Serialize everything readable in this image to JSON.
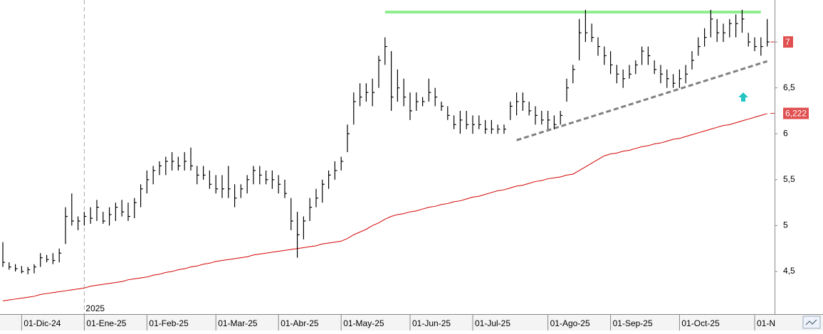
{
  "chart_data": {
    "type": "ohlc",
    "categories": [
      null,
      null,
      null,
      "01-Dic-24",
      null,
      null,
      null,
      null,
      null,
      null,
      null,
      null,
      null,
      "01-Ene-25",
      null,
      null,
      null,
      null,
      null,
      null,
      null,
      null,
      null,
      "01-Feb-25",
      null,
      null,
      null,
      null,
      null,
      null,
      null,
      null,
      null,
      null,
      "01-Mar-25",
      null,
      null,
      null,
      null,
      null,
      null,
      null,
      null,
      null,
      "01-Abr-25",
      null,
      null,
      null,
      null,
      null,
      null,
      null,
      null,
      null,
      "01-May-25",
      null,
      null,
      null,
      null,
      null,
      null,
      null,
      null,
      null,
      null,
      "01-Jun-25",
      null,
      null,
      null,
      null,
      null,
      null,
      null,
      null,
      null,
      "01-Jul-25",
      null,
      null,
      null,
      null,
      null,
      null,
      null,
      null,
      null,
      null,
      null,
      "01-Ago-25",
      null,
      null,
      null,
      null,
      null,
      null,
      null,
      null,
      null,
      "01-Sep-25",
      null,
      null,
      null,
      null,
      null,
      null,
      null,
      null,
      null,
      null,
      "01-Oct-25",
      null,
      null,
      null,
      null,
      null,
      null,
      null,
      null,
      null,
      null,
      null,
      "01-N",
      null,
      null
    ],
    "year_marker": {
      "label": "2025",
      "at": 13
    },
    "high": [
      4.82,
      4.6,
      4.58,
      4.56,
      4.55,
      4.58,
      4.7,
      4.68,
      4.7,
      4.75,
      5.2,
      5.35,
      5.1,
      5.15,
      5.2,
      5.28,
      5.15,
      5.2,
      5.25,
      5.28,
      5.25,
      5.3,
      5.45,
      5.6,
      5.65,
      5.7,
      5.75,
      5.8,
      5.75,
      5.8,
      5.85,
      5.65,
      5.65,
      5.6,
      5.55,
      5.55,
      5.65,
      5.45,
      5.45,
      5.55,
      5.65,
      5.65,
      5.6,
      5.6,
      5.55,
      5.5,
      5.3,
      5.15,
      5.1,
      5.3,
      5.4,
      5.5,
      5.6,
      5.7,
      5.75,
      6.1,
      6.45,
      6.55,
      6.55,
      6.6,
      6.85,
      7.05,
      6.9,
      6.7,
      6.6,
      6.45,
      6.45,
      6.4,
      6.6,
      6.5,
      6.35,
      6.3,
      6.2,
      6.25,
      6.25,
      6.2,
      6.2,
      6.15,
      6.15,
      6.1,
      6.1,
      6.35,
      6.45,
      6.45,
      6.35,
      6.3,
      6.25,
      6.25,
      6.2,
      6.25,
      6.6,
      6.75,
      7.25,
      7.35,
      7.2,
      7.05,
      6.95,
      6.9,
      6.75,
      6.7,
      6.75,
      6.8,
      6.95,
      6.95,
      6.8,
      6.75,
      6.7,
      6.65,
      6.7,
      6.75,
      6.9,
      7.05,
      7.15,
      7.35,
      7.25,
      7.2,
      7.25,
      7.3,
      7.35,
      7.1,
      7.05,
      7.05,
      7.25
    ],
    "low": [
      4.55,
      4.52,
      4.5,
      4.48,
      4.47,
      4.48,
      4.55,
      4.6,
      4.58,
      4.6,
      4.8,
      5.0,
      4.95,
      5.0,
      5.02,
      5.05,
      5.02,
      5.0,
      5.05,
      5.1,
      5.05,
      5.08,
      5.2,
      5.35,
      5.45,
      5.55,
      5.55,
      5.6,
      5.6,
      5.6,
      5.6,
      5.45,
      5.5,
      5.4,
      5.35,
      5.3,
      5.3,
      5.2,
      5.3,
      5.35,
      5.45,
      5.45,
      5.45,
      5.4,
      5.35,
      5.3,
      4.95,
      4.65,
      4.85,
      5.05,
      5.2,
      5.25,
      5.4,
      5.5,
      5.6,
      5.8,
      6.1,
      6.3,
      6.35,
      6.3,
      6.5,
      6.75,
      6.25,
      6.35,
      6.3,
      6.15,
      6.25,
      6.3,
      6.35,
      6.3,
      6.25,
      6.15,
      6.05,
      6.0,
      6.05,
      6.0,
      6.05,
      6.0,
      6.0,
      6.0,
      6.0,
      6.15,
      6.2,
      6.25,
      6.2,
      6.1,
      6.1,
      6.05,
      6.05,
      6.1,
      6.35,
      6.55,
      6.8,
      7.0,
      7.0,
      6.85,
      6.75,
      6.65,
      6.55,
      6.5,
      6.6,
      6.65,
      6.75,
      6.75,
      6.65,
      6.55,
      6.5,
      6.5,
      6.5,
      6.55,
      6.7,
      6.85,
      6.95,
      7.05,
      7.0,
      7.0,
      7.05,
      7.05,
      7.1,
      6.95,
      6.9,
      6.85,
      6.95
    ],
    "close": [
      4.6,
      4.55,
      4.53,
      4.5,
      4.52,
      4.55,
      4.65,
      4.63,
      4.62,
      4.7,
      5.1,
      5.05,
      5.05,
      5.1,
      5.08,
      5.2,
      5.05,
      5.12,
      5.2,
      5.15,
      5.1,
      5.25,
      5.4,
      5.5,
      5.6,
      5.65,
      5.7,
      5.7,
      5.65,
      5.7,
      5.65,
      5.55,
      5.55,
      5.45,
      5.4,
      5.4,
      5.4,
      5.3,
      5.4,
      5.5,
      5.6,
      5.55,
      5.5,
      5.5,
      5.45,
      5.35,
      5.05,
      4.9,
      5.05,
      5.2,
      5.3,
      5.45,
      5.55,
      5.6,
      5.7,
      6.0,
      6.35,
      6.4,
      6.45,
      6.45,
      6.8,
      6.95,
      6.4,
      6.5,
      6.4,
      6.25,
      6.35,
      6.35,
      6.45,
      6.4,
      6.3,
      6.2,
      6.1,
      6.15,
      6.1,
      6.1,
      6.1,
      6.05,
      6.05,
      6.05,
      6.05,
      6.3,
      6.35,
      6.35,
      6.25,
      6.2,
      6.15,
      6.15,
      6.1,
      6.2,
      6.5,
      6.7,
      7.1,
      7.1,
      7.05,
      6.95,
      6.85,
      6.75,
      6.65,
      6.6,
      6.65,
      6.75,
      6.9,
      6.85,
      6.7,
      6.65,
      6.6,
      6.55,
      6.6,
      6.65,
      6.8,
      6.95,
      7.05,
      7.25,
      7.1,
      7.1,
      7.2,
      7.2,
      7.25,
      7.0,
      6.95,
      6.95,
      7.0
    ],
    "color": "#000000",
    "moving_average": {
      "color": "#d40000",
      "values": [
        4.18,
        4.19,
        4.2,
        4.21,
        4.22,
        4.23,
        4.25,
        4.26,
        4.27,
        4.28,
        4.29,
        4.3,
        4.31,
        4.32,
        4.34,
        4.35,
        4.36,
        4.37,
        4.38,
        4.39,
        4.41,
        4.42,
        4.43,
        4.44,
        4.46,
        4.47,
        4.49,
        4.5,
        4.52,
        4.53,
        4.55,
        4.56,
        4.58,
        4.59,
        4.61,
        4.62,
        4.63,
        4.64,
        4.65,
        4.66,
        4.68,
        4.69,
        4.7,
        4.71,
        4.72,
        4.73,
        4.74,
        4.75,
        4.76,
        4.77,
        4.78,
        4.8,
        4.81,
        4.82,
        4.83,
        4.86,
        4.9,
        4.93,
        4.96,
        5.0,
        5.03,
        5.07,
        5.1,
        5.12,
        5.13,
        5.15,
        5.16,
        5.18,
        5.2,
        5.21,
        5.23,
        5.24,
        5.26,
        5.27,
        5.29,
        5.31,
        5.32,
        5.34,
        5.36,
        5.38,
        5.39,
        5.41,
        5.43,
        5.44,
        5.46,
        5.48,
        5.49,
        5.51,
        5.52,
        5.53,
        5.55,
        5.56,
        5.6,
        5.64,
        5.68,
        5.72,
        5.76,
        5.78,
        5.79,
        5.81,
        5.82,
        5.84,
        5.86,
        5.87,
        5.89,
        5.9,
        5.92,
        5.94,
        5.95,
        5.97,
        5.99,
        6.01,
        6.03,
        6.05,
        6.07,
        6.09,
        6.1,
        6.12,
        6.14,
        6.16,
        6.18,
        6.2,
        6.22
      ],
      "last_label": {
        "value": 6.222,
        "label": "6,222"
      }
    },
    "last_price": 7,
    "resistance": {
      "color": "#90ee90",
      "value": 7.325,
      "from": 61,
      "to": 121
    },
    "trendline": {
      "color": "#808080",
      "x": [
        82,
        122
      ],
      "values": [
        5.93,
        6.79
      ]
    },
    "ylim": [
      4.036,
      7.457
    ],
    "yticks": [
      {
        "value": 4.5,
        "label": "4,5"
      },
      5,
      {
        "value": 5.5,
        "label": "5,5"
      },
      6,
      {
        "value": 6.5,
        "label": "6,5"
      },
      7
    ]
  }
}
